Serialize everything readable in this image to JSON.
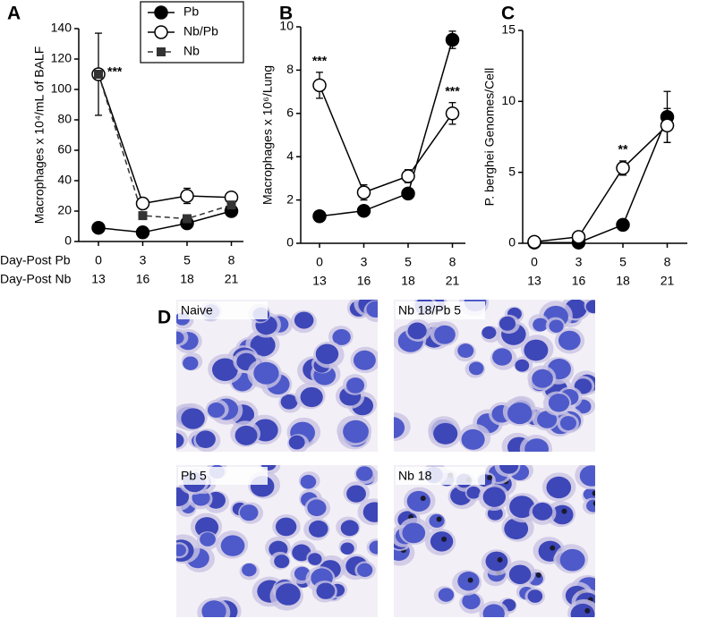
{
  "chart_data": [
    {
      "type": "line",
      "panel_label": "A",
      "ylabel": "Macrophages x 10⁴/mL of BALF",
      "xlabel_rows": [
        "Day-Post Pb",
        "Day-Post Nb"
      ],
      "categories": [
        "0",
        "3",
        "5",
        "8"
      ],
      "categories2": [
        "13",
        "16",
        "18",
        "21"
      ],
      "ylim": [
        0,
        140
      ],
      "yticks": [
        0,
        20,
        40,
        60,
        80,
        100,
        120,
        140
      ],
      "legend": "top-right",
      "series": [
        {
          "name": "Pb",
          "color": "#000000",
          "marker": "circle-filled",
          "dash": false,
          "values": [
            9,
            6,
            12,
            20
          ],
          "errors": [
            1,
            1,
            2,
            3
          ]
        },
        {
          "name": "Nb/Pb",
          "color": "#000000",
          "marker": "circle-open",
          "dash": false,
          "values": [
            110,
            25,
            30,
            29
          ],
          "errors": [
            27,
            3,
            5,
            3
          ]
        },
        {
          "name": "Nb",
          "color": "#333333",
          "marker": "square-filled",
          "dash": true,
          "values": [
            110,
            17,
            15,
            24
          ],
          "errors": [
            null,
            2,
            2,
            2
          ]
        }
      ],
      "annotations": [
        {
          "text": "***",
          "category": "0",
          "series": "Nb/Pb"
        }
      ]
    },
    {
      "type": "line",
      "panel_label": "B",
      "ylabel": "Macrophages x 10⁶/Lung",
      "categories": [
        "0",
        "3",
        "5",
        "8"
      ],
      "categories2": [
        "13",
        "16",
        "18",
        "21"
      ],
      "ylim": [
        0,
        10
      ],
      "yticks": [
        0,
        2,
        4,
        6,
        8,
        10
      ],
      "series": [
        {
          "name": "Pb",
          "color": "#000000",
          "marker": "circle-filled",
          "dash": false,
          "values": [
            1.25,
            1.5,
            2.3,
            9.4
          ],
          "errors": [
            0.1,
            0.1,
            0.15,
            0.4
          ]
        },
        {
          "name": "Nb/Pb",
          "color": "#000000",
          "marker": "circle-open",
          "dash": false,
          "values": [
            7.3,
            2.35,
            3.1,
            6.0
          ],
          "errors": [
            0.6,
            0.35,
            0.3,
            0.5
          ]
        }
      ],
      "annotations": [
        {
          "text": "***",
          "category": "0",
          "series": "Nb/Pb"
        },
        {
          "text": "***",
          "category": "8",
          "series": "Nb/Pb"
        }
      ]
    },
    {
      "type": "line",
      "panel_label": "C",
      "ylabel": "P. berghei Genomes/Cell",
      "categories": [
        "0",
        "3",
        "5",
        "8"
      ],
      "categories2": [
        "13",
        "16",
        "18",
        "21"
      ],
      "ylim": [
        0,
        15
      ],
      "yticks": [
        0,
        5,
        10,
        15
      ],
      "series": [
        {
          "name": "Pb",
          "color": "#000000",
          "marker": "circle-filled",
          "dash": false,
          "values": [
            0.05,
            0.05,
            1.3,
            8.9
          ],
          "errors": [
            0.05,
            0.05,
            0.2,
            1.8
          ]
        },
        {
          "name": "Nb/Pb",
          "color": "#000000",
          "marker": "circle-open",
          "dash": false,
          "values": [
            0.1,
            0.45,
            5.3,
            8.3
          ],
          "errors": [
            0.1,
            0.1,
            0.5,
            1.2
          ]
        }
      ],
      "annotations": [
        {
          "text": "**",
          "category": "5",
          "series": "Nb/Pb"
        }
      ]
    }
  ],
  "panel_d": {
    "label": "D",
    "images": [
      {
        "caption": "Naive"
      },
      {
        "caption": "Nb 18/Pb 5"
      },
      {
        "caption": "Pb 5"
      },
      {
        "caption": "Nb 18"
      }
    ]
  }
}
